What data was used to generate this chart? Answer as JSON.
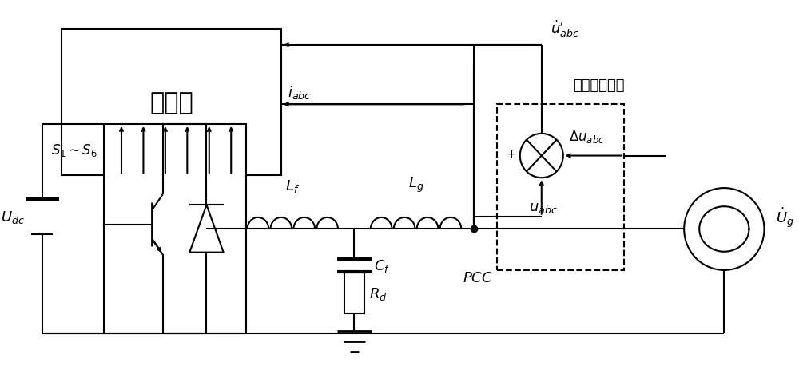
{
  "fig_width": 10.0,
  "fig_height": 4.85,
  "dpi": 100,
  "bg_color": "#ffffff",
  "line_color": "#000000",
  "lw": 1.5,
  "controller_label": "控制器",
  "udc_label": "$U_{dc}$",
  "s1s6_label": "$S_1 \\sim S_6$",
  "lf_label": "$L_f$",
  "lg_label": "$L_g$",
  "cf_label": "$C_f$",
  "rd_label": "$R_d$",
  "pcc_label": "$PCC$",
  "ug_label": "$\\dot{U}_g$",
  "u_abc_label": "$\\dot{u}^{\\prime}_{abc}$",
  "i_abc_label": "$i_{abc}$",
  "delta_u_label": "$\\Delta u_{abc}$",
  "u_abc2_label": "$u_{abc}$",
  "perturbation_label": "扰动注入模块"
}
